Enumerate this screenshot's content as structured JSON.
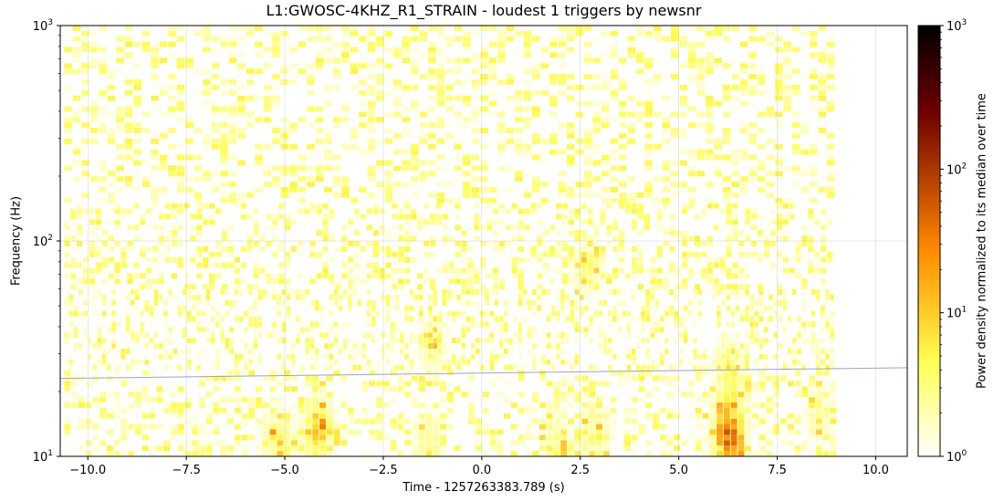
{
  "chart_data": {
    "type": "heatmap",
    "title": "L1:GWOSC-4KHZ_R1_STRAIN - loudest 1 triggers by newsnr",
    "xlabel": "Time - 1257263383.789 (s)",
    "ylabel": "Frequency (Hz)",
    "colorbar_label": "Power density normalized to its median over time",
    "colormap": "afmhot_r",
    "xlim": [
      -10.7,
      10.8
    ],
    "ylim": [
      10,
      1000
    ],
    "yscale": "log",
    "x_ticks": [
      -10.0,
      -7.5,
      -5.0,
      -2.5,
      0.0,
      2.5,
      5.0,
      7.5,
      10.0
    ],
    "x_tick_labels": [
      "−10.0",
      "−7.5",
      "−5.0",
      "−2.5",
      "0.0",
      "2.5",
      "5.0",
      "7.5",
      "10.0"
    ],
    "y_ticks": [
      10,
      100,
      1000
    ],
    "y_tick_base": "10",
    "y_tick_exps": [
      "1",
      "2",
      "3"
    ],
    "colorbar_range": [
      1,
      1000
    ],
    "colorbar_ticks": [
      1,
      10,
      100,
      1000
    ],
    "colorbar_tick_base": "10",
    "colorbar_tick_exps": [
      "0",
      "1",
      "2",
      "3"
    ],
    "data_x_range": [
      -10.6,
      8.9
    ],
    "grid": true,
    "track_line": {
      "description": "trigger frequency track",
      "color": "#9aa0e0",
      "x": [
        -10.7,
        10.8
      ],
      "y": [
        23.0,
        25.8
      ]
    },
    "hot_spots": [
      {
        "t": 6.2,
        "f": 11.5,
        "level": 2.4
      },
      {
        "t": 6.2,
        "f": 15,
        "level": 1.6
      },
      {
        "t": 6.2,
        "f": 25,
        "level": 1.2
      },
      {
        "t": -5.3,
        "f": 12,
        "level": 1.2
      },
      {
        "t": -4.3,
        "f": 12,
        "level": 1.1
      },
      {
        "t": -4.2,
        "f": 14.5,
        "level": 1.1
      },
      {
        "t": 2.8,
        "f": 13,
        "level": 0.9
      },
      {
        "t": -1.4,
        "f": 11.5,
        "level": 0.9
      },
      {
        "t": 1.8,
        "f": 11.5,
        "level": 0.8
      },
      {
        "t": 8.5,
        "f": 16,
        "level": 0.8
      },
      {
        "t": 2.6,
        "f": 75,
        "level": 0.9
      },
      {
        "t": -1.3,
        "f": 32,
        "level": 0.8
      }
    ]
  }
}
